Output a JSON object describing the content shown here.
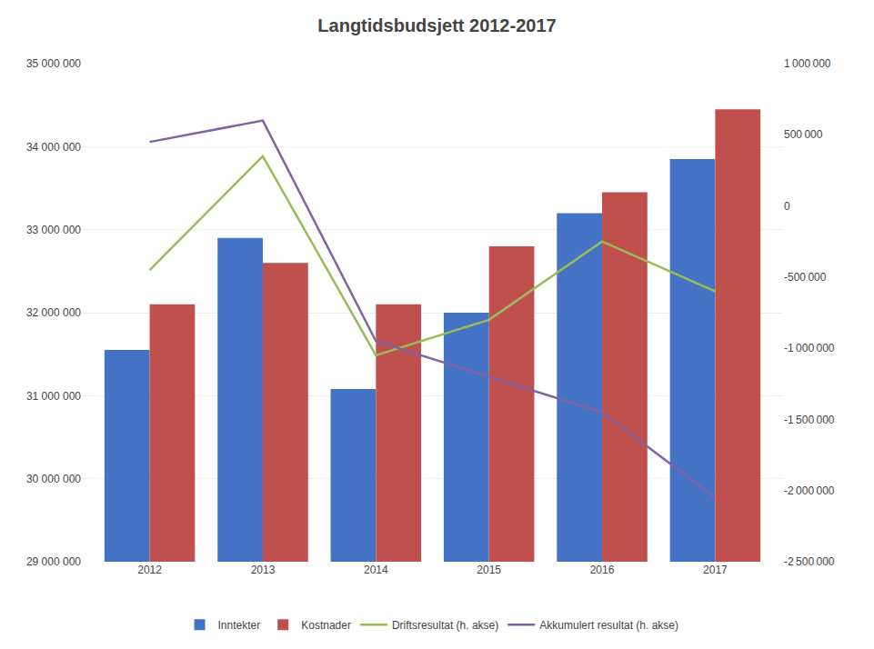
{
  "chart_data": {
    "type": "bar",
    "title": "Langtidsbudsjett 2012-2017",
    "categories": [
      "2012",
      "2013",
      "2014",
      "2015",
      "2016",
      "2017"
    ],
    "series": [
      {
        "name": "Inntekter",
        "type": "bar",
        "color": "#4472C4",
        "values": [
          31550000,
          32900000,
          31080000,
          32000000,
          33200000,
          33850000
        ]
      },
      {
        "name": "Kostnader",
        "type": "bar",
        "color": "#C0504D",
        "values": [
          32100000,
          32600000,
          32100000,
          32800000,
          33450000,
          34450000
        ]
      },
      {
        "name": "Driftsresultat (h. akse)",
        "type": "line",
        "axis": "y2",
        "color": "#9BBB59",
        "values": [
          -450000,
          350000,
          -1050000,
          -800000,
          -250000,
          -600000
        ]
      },
      {
        "name": "Akkumulert resultat (h. akse)",
        "type": "line",
        "axis": "y2",
        "color": "#8064A2",
        "values": [
          450000,
          600000,
          -950000,
          -1200000,
          -1450000,
          -2050000
        ]
      }
    ],
    "ylim": [
      29000000,
      35000000
    ],
    "yticks": [
      {
        "value": 29000000,
        "label": "29 000 000"
      },
      {
        "value": 30000000,
        "label": "30 000 000"
      },
      {
        "value": 31000000,
        "label": "31 000 000"
      },
      {
        "value": 32000000,
        "label": "32 000 000"
      },
      {
        "value": 33000000,
        "label": "33 000 000"
      },
      {
        "value": 34000000,
        "label": "34 000 000"
      },
      {
        "value": 35000000,
        "label": "35 000 000"
      }
    ],
    "y2lim": [
      -2500000,
      1000000
    ],
    "y2ticks": [
      {
        "value": -2500000,
        "label": "-2 500 000"
      },
      {
        "value": -2000000,
        "label": "-2 000 000"
      },
      {
        "value": -1500000,
        "label": "-1 500 000"
      },
      {
        "value": -1000000,
        "label": "-1 000 000"
      },
      {
        "value": -500000,
        "label": "-500 000"
      },
      0,
      {
        "value": 500000,
        "label": "500 000"
      },
      {
        "value": 1000000,
        "label": "1 000 000"
      }
    ],
    "grid": true,
    "legend": "bottom"
  }
}
